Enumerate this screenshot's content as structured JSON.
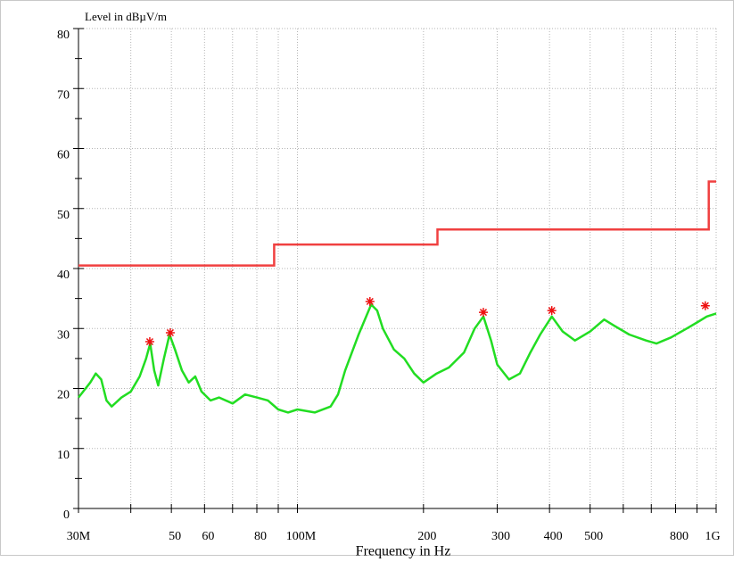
{
  "chart_data": {
    "type": "line",
    "y_label": "Level in dBµV/m",
    "x_label": "Frequency in Hz",
    "xscale": "log",
    "grid": true,
    "xlim": [
      30000000,
      1000000000
    ],
    "ylim": [
      0,
      80
    ],
    "xticks": [
      {
        "value": 30000000,
        "label": "30M"
      },
      {
        "value": 50000000,
        "label": "50"
      },
      {
        "value": 60000000,
        "label": "60"
      },
      {
        "value": 80000000,
        "label": "80"
      },
      {
        "value": 100000000,
        "label": "100M"
      },
      {
        "value": 200000000,
        "label": "200"
      },
      {
        "value": 300000000,
        "label": "300"
      },
      {
        "value": 400000000,
        "label": "400"
      },
      {
        "value": 500000000,
        "label": "500"
      },
      {
        "value": 800000000,
        "label": "800"
      },
      {
        "value": 1000000000,
        "label": "1G"
      }
    ],
    "xticks_minor": [
      40000000,
      70000000,
      90000000,
      600000000,
      700000000,
      900000000
    ],
    "yticks": [
      0,
      10,
      20,
      30,
      40,
      50,
      60,
      70,
      80
    ],
    "yticks_minor": [
      5,
      15,
      25,
      35,
      45,
      55,
      65,
      75
    ],
    "limit": {
      "color": "#f04040",
      "x": [
        30000000,
        88000000,
        88000000,
        216000000,
        216000000,
        960000000,
        960000000,
        1000000000
      ],
      "values": [
        40.5,
        40.5,
        44,
        44,
        46.5,
        46.5,
        54.5,
        54.5
      ]
    },
    "series": [
      {
        "color": "#22dd22",
        "x": [
          30000000,
          32000000,
          33000000,
          34000000,
          35000000,
          36000000,
          38000000,
          40000000,
          42000000,
          43500000,
          44500000,
          45500000,
          46500000,
          48000000,
          49500000,
          51000000,
          53000000,
          55000000,
          57000000,
          59000000,
          62000000,
          65000000,
          70000000,
          75000000,
          80000000,
          85000000,
          90000000,
          95000000,
          100000000,
          110000000,
          120000000,
          125000000,
          130000000,
          140000000,
          150000000,
          155000000,
          160000000,
          170000000,
          180000000,
          190000000,
          200000000,
          215000000,
          230000000,
          250000000,
          265000000,
          278000000,
          290000000,
          300000000,
          320000000,
          340000000,
          360000000,
          380000000,
          405000000,
          430000000,
          460000000,
          500000000,
          540000000,
          570000000,
          620000000,
          680000000,
          720000000,
          780000000,
          850000000,
          900000000,
          950000000,
          1000000000
        ],
        "values": [
          18.5,
          21,
          22.5,
          21.5,
          18,
          17,
          18.5,
          19.5,
          22,
          25,
          27.5,
          23,
          20.5,
          25,
          29,
          26.5,
          23,
          21,
          22,
          19.5,
          18,
          18.5,
          17.5,
          19,
          18.5,
          18,
          16.5,
          16,
          16.5,
          16,
          17,
          19,
          23,
          29,
          34,
          33,
          30,
          26.5,
          25,
          22.5,
          21,
          22.5,
          23.5,
          26,
          30,
          32,
          28,
          24,
          21.5,
          22.5,
          26,
          29,
          32,
          29.5,
          28,
          29.5,
          31.5,
          30.5,
          29,
          28,
          27.5,
          28.5,
          30,
          31,
          32,
          32.5
        ]
      }
    ],
    "peaks": {
      "color": "#ee1111",
      "x": [
        44400000,
        49700000,
        149000000,
        278000000,
        405000000,
        942000000
      ],
      "values": [
        27.8,
        29.3,
        34.5,
        32.7,
        33,
        33.8
      ]
    }
  }
}
